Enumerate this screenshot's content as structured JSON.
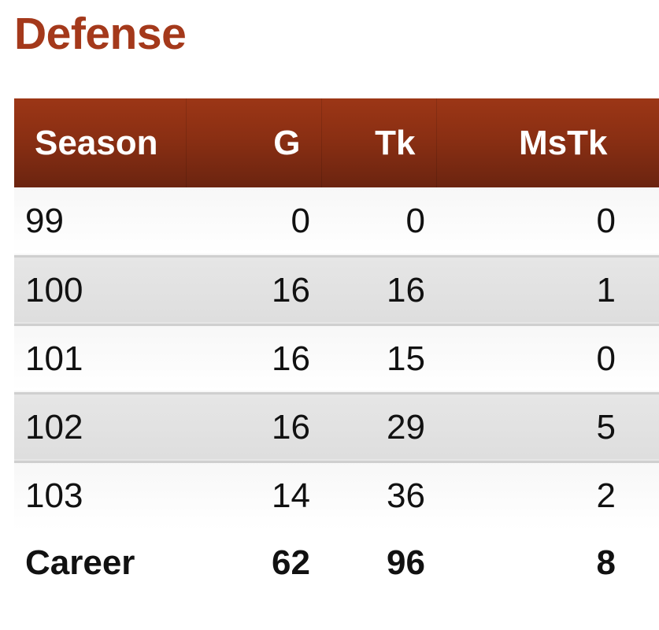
{
  "section": {
    "title": "Defense"
  },
  "table": {
    "headers": [
      "Season",
      "G",
      "Tk",
      "MsTk"
    ],
    "rows": [
      [
        "99",
        "0",
        "0",
        "0"
      ],
      [
        "100",
        "16",
        "16",
        "1"
      ],
      [
        "101",
        "16",
        "15",
        "0"
      ],
      [
        "102",
        "16",
        "29",
        "5"
      ],
      [
        "103",
        "14",
        "36",
        "2"
      ]
    ],
    "career": [
      "Career",
      "62",
      "96",
      "8"
    ]
  },
  "colors": {
    "title": "#a4391b",
    "header_bg": "#8a2f13",
    "header_text": "#ffffff",
    "row_alt": "#e2e2e2"
  }
}
